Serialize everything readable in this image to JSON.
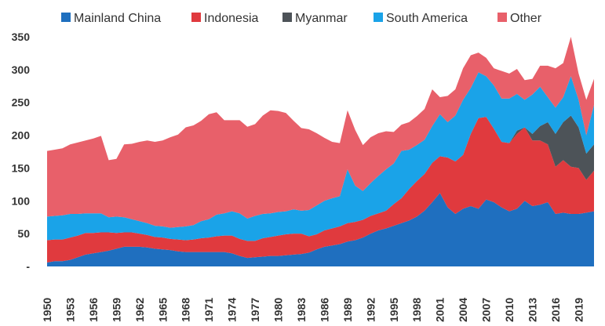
{
  "chart_data": {
    "type": "area",
    "stacked": true,
    "title": "",
    "xlabel": "",
    "ylabel": "",
    "ylim": [
      0,
      350
    ],
    "yticks": [
      0,
      50,
      100,
      150,
      200,
      250,
      300,
      350
    ],
    "ytick_labels": [
      "-",
      "50",
      "100",
      "150",
      "200",
      "250",
      "300",
      "350"
    ],
    "xlim": [
      1950,
      2021
    ],
    "xticks": [
      1950,
      1953,
      1956,
      1959,
      1962,
      1965,
      1968,
      1971,
      1974,
      1977,
      1980,
      1983,
      1986,
      1989,
      1992,
      1995,
      1998,
      2001,
      2004,
      2007,
      2010,
      2013,
      2016,
      2019
    ],
    "legend_position": "top",
    "x": [
      1950,
      1951,
      1952,
      1953,
      1954,
      1955,
      1956,
      1957,
      1958,
      1959,
      1960,
      1961,
      1962,
      1963,
      1964,
      1965,
      1966,
      1967,
      1968,
      1969,
      1970,
      1971,
      1972,
      1973,
      1974,
      1975,
      1976,
      1977,
      1978,
      1979,
      1980,
      1981,
      1982,
      1983,
      1984,
      1985,
      1986,
      1987,
      1988,
      1989,
      1990,
      1991,
      1992,
      1993,
      1994,
      1995,
      1996,
      1997,
      1998,
      1999,
      2000,
      2001,
      2002,
      2003,
      2004,
      2005,
      2006,
      2007,
      2008,
      2009,
      2010,
      2011,
      2012,
      2013,
      2014,
      2015,
      2016,
      2017,
      2018,
      2019,
      2020,
      2021
    ],
    "series": [
      {
        "name": "Mainland China",
        "color": "#1f6fbf",
        "values": [
          6,
          8,
          8,
          10,
          14,
          18,
          20,
          22,
          24,
          27,
          30,
          30,
          30,
          29,
          27,
          26,
          25,
          23,
          22,
          22,
          22,
          22,
          22,
          22,
          20,
          16,
          13,
          14,
          15,
          16,
          16,
          17,
          18,
          19,
          21,
          26,
          30,
          32,
          34,
          38,
          40,
          44,
          50,
          55,
          58,
          62,
          66,
          70,
          76,
          85,
          98,
          112,
          90,
          80,
          88,
          92,
          88,
          102,
          98,
          90,
          84,
          88,
          100,
          92,
          94,
          98,
          80,
          82,
          80,
          80,
          82,
          84
        ]
      },
      {
        "name": "Indonesia",
        "color": "#e03a3e",
        "values": [
          34,
          33,
          33,
          34,
          33,
          33,
          31,
          30,
          28,
          24,
          22,
          22,
          20,
          19,
          18,
          18,
          17,
          18,
          18,
          19,
          21,
          22,
          24,
          25,
          27,
          26,
          26,
          25,
          28,
          29,
          31,
          32,
          32,
          31,
          25,
          23,
          25,
          26,
          27,
          28,
          28,
          27,
          27,
          26,
          27,
          33,
          38,
          48,
          54,
          56,
          60,
          56,
          76,
          80,
          82,
          110,
          138,
          126,
          112,
          100,
          104,
          114,
          112,
          100,
          98,
          88,
          72,
          80,
          72,
          70,
          50,
          62
        ]
      },
      {
        "name": "Myanmar",
        "color": "#4d5358",
        "values": [
          0,
          0,
          0,
          0,
          0,
          0,
          0,
          0,
          0,
          0,
          0,
          0,
          0,
          0,
          0,
          0,
          0,
          0,
          0,
          0,
          0,
          0,
          0,
          0,
          0,
          0,
          0,
          0,
          0,
          0,
          0,
          0,
          0,
          0,
          0,
          0,
          0,
          0,
          0,
          0,
          0,
          0,
          0,
          0,
          0,
          0,
          0,
          0,
          0,
          0,
          0,
          0,
          0,
          0,
          0,
          0,
          0,
          0,
          0,
          0,
          0,
          5,
          0,
          10,
          22,
          34,
          50,
          58,
          78,
          62,
          40,
          40
        ]
      },
      {
        "name": "South America",
        "color": "#1aa3e8",
        "values": [
          36,
          36,
          37,
          36,
          33,
          30,
          30,
          29,
          23,
          25,
          23,
          20,
          19,
          18,
          17,
          17,
          17,
          19,
          21,
          22,
          26,
          28,
          33,
          34,
          37,
          39,
          34,
          38,
          37,
          36,
          36,
          35,
          37,
          35,
          40,
          44,
          45,
          46,
          46,
          82,
          55,
          44,
          50,
          57,
          63,
          62,
          72,
          60,
          55,
          52,
          56,
          64,
          54,
          70,
          84,
          70,
          70,
          62,
          66,
          66,
          68,
          56,
          42,
          60,
          60,
          38,
          40,
          38,
          60,
          42,
          28,
          60
        ]
      },
      {
        "name": "Other",
        "color": "#e8606a",
        "values": [
          100,
          101,
          102,
          106,
          109,
          111,
          114,
          118,
          87,
          88,
          111,
          115,
          121,
          126,
          128,
          131,
          138,
          141,
          151,
          152,
          153,
          160,
          156,
          142,
          139,
          142,
          140,
          140,
          150,
          157,
          154,
          150,
          135,
          126,
          123,
          110,
          96,
          86,
          81,
          90,
          85,
          70,
          70,
          65,
          58,
          48,
          40,
          42,
          44,
          47,
          56,
          26,
          40,
          40,
          48,
          50,
          30,
          28,
          26,
          42,
          38,
          38,
          30,
          24,
          32,
          48,
          60,
          52,
          60,
          40,
          54,
          40
        ]
      }
    ]
  }
}
